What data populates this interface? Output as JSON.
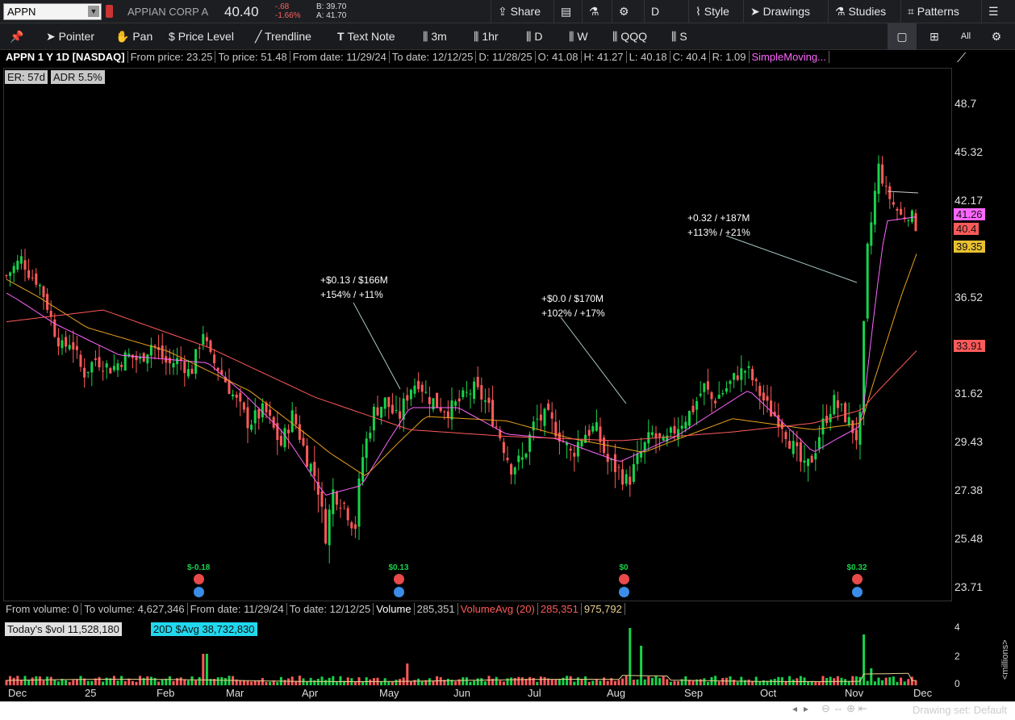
{
  "header": {
    "symbol": "APPN",
    "company": "APPIAN CORP A",
    "last": "40.40",
    "change": "-.68",
    "change_pct": "-1.66%",
    "bid": "B: 39.70",
    "ask": "A: 41.70",
    "buttons": [
      "Share",
      "Drawings",
      "Studies",
      "Patterns",
      "Style",
      "D"
    ],
    "share_label": "Share",
    "style_label": "Style",
    "drawings_label": "Drawings",
    "studies_label": "Studies",
    "patterns_label": "Patterns",
    "aggregation": "D"
  },
  "toolbar": {
    "pointer": "Pointer",
    "pan": "Pan",
    "price_level": "Price Level",
    "trendline": "Trendline",
    "text_note": "Text Note",
    "t3m": "3m",
    "t1hr": "1hr",
    "tD": "D",
    "tW": "W",
    "qqq": "QQQ",
    "s": "S",
    "all": "All"
  },
  "infobar": {
    "title": "APPN 1 Y 1D [NASDAQ]",
    "from_price": "From price: 23.25",
    "to_price": "To price: 51.48",
    "from_date": "From date: 11/29/24",
    "to_date": "To date: 12/12/25",
    "d": "D: 11/28/25",
    "o": "O: 41.08",
    "h": "H: 41.27",
    "l": "L: 40.18",
    "c": "C: 40.4",
    "r": "R: 1.09",
    "study": "SimpleMoving..."
  },
  "badges": {
    "er": "ER: 57d",
    "adr": "ADR 5.5%"
  },
  "price_axis": [
    "48.7",
    "45.32",
    "42.17",
    "36.52",
    "31.62",
    "29.43",
    "27.38",
    "25.48",
    "23.71"
  ],
  "price_tags": [
    {
      "label": "41.26",
      "bg": "#ff66ff"
    },
    {
      "label": "40.4",
      "bg": "#ff5a5a"
    },
    {
      "label": "39.35",
      "bg": "#e8c030"
    },
    {
      "label": "33.91",
      "bg": "#ff5a5a"
    }
  ],
  "annotations": [
    {
      "line1": "+$0.13 / $166M",
      "line2": "+154% / +11%"
    },
    {
      "line1": "+$0.0 / $170M",
      "line2": "+102% / +17%"
    },
    {
      "line1": "+0.32 / +187M",
      "line2": "+113% / +21%"
    }
  ],
  "earnings": [
    "$-0.18",
    "$0.13",
    "$0",
    "$0.32"
  ],
  "volume_info": {
    "from_volume": "From volume: 0",
    "to_volume": "To volume: 4,627,346",
    "from_date": "From date: 11/29/24",
    "to_date": "To date: 12/12/25",
    "label": "Volume",
    "value": "285,351",
    "avg_label": "VolumeAvg (20)",
    "avg_value": "285,351",
    "avg2": "975,792"
  },
  "dollar_volume": {
    "today": "Today's $vol 11,528,180",
    "avg": "20D $Avg 38,732,830"
  },
  "volume_axis": [
    "4",
    "2",
    "0"
  ],
  "volume_unit": "<millions>",
  "months": [
    "Dec",
    "25",
    "Feb",
    "Mar",
    "Apr",
    "May",
    "Jun",
    "Jul",
    "Aug",
    "Sep",
    "Oct",
    "Nov",
    "Dec"
  ],
  "drawing_set": "Drawing set: Default",
  "colors": {
    "up": "#17d34a",
    "down": "#ff5a5a",
    "sma_short": "#ff66ff",
    "sma_mid": "#e8a020",
    "sma_long": "#ff5a5a",
    "background": "#000000"
  },
  "chart_data": {
    "type": "candlestick",
    "title": "APPN 1 Y 1D [NASDAQ]",
    "series": [
      {
        "name": "APPN close (approx.)",
        "values": [
          [
            0,
            37.8
          ],
          [
            20,
            38.9
          ],
          [
            25,
            38.1
          ],
          [
            40,
            37.4
          ],
          [
            50,
            36.2
          ],
          [
            60,
            34.8
          ],
          [
            70,
            33.9
          ],
          [
            80,
            34.4
          ],
          [
            95,
            32.6
          ],
          [
            110,
            33.4
          ],
          [
            130,
            32.9
          ],
          [
            150,
            33.6
          ],
          [
            165,
            33.3
          ],
          [
            180,
            34.2
          ],
          [
            200,
            33.1
          ],
          [
            215,
            33.4
          ],
          [
            228,
            32.6
          ],
          [
            245,
            35.0
          ],
          [
            250,
            33.6
          ],
          [
            265,
            32.8
          ],
          [
            280,
            31.6
          ],
          [
            300,
            30.3
          ],
          [
            320,
            30.9
          ],
          [
            340,
            29.3
          ],
          [
            355,
            30.7
          ],
          [
            370,
            29.0
          ],
          [
            385,
            27.8
          ],
          [
            395,
            25.6
          ],
          [
            405,
            27.4
          ],
          [
            420,
            26.8
          ],
          [
            432,
            25.9
          ],
          [
            440,
            28.6
          ],
          [
            455,
            30.8
          ],
          [
            470,
            31.3
          ],
          [
            485,
            30.4
          ],
          [
            500,
            31.9
          ],
          [
            510,
            32.3
          ],
          [
            520,
            31.6
          ],
          [
            535,
            31.1
          ],
          [
            550,
            30.9
          ],
          [
            565,
            31.4
          ],
          [
            580,
            31.9
          ],
          [
            595,
            31.2
          ],
          [
            610,
            29.9
          ],
          [
            625,
            28.4
          ],
          [
            640,
            28.7
          ],
          [
            655,
            30.4
          ],
          [
            670,
            30.6
          ],
          [
            685,
            29.8
          ],
          [
            700,
            28.9
          ],
          [
            715,
            29.8
          ],
          [
            730,
            30.1
          ],
          [
            745,
            28.6
          ],
          [
            760,
            28.2
          ],
          [
            770,
            27.7
          ],
          [
            785,
            28.9
          ],
          [
            800,
            29.8
          ],
          [
            815,
            29.3
          ],
          [
            830,
            30.1
          ],
          [
            850,
            30.9
          ],
          [
            865,
            32.0
          ],
          [
            875,
            31.3
          ],
          [
            890,
            31.8
          ],
          [
            905,
            32.6
          ],
          [
            918,
            32.9
          ],
          [
            930,
            31.9
          ],
          [
            945,
            30.9
          ],
          [
            960,
            30.4
          ],
          [
            975,
            29.2
          ],
          [
            990,
            28.2
          ],
          [
            1000,
            28.9
          ],
          [
            1010,
            30.1
          ],
          [
            1025,
            31.3
          ],
          [
            1040,
            30.6
          ],
          [
            1055,
            29.6
          ],
          [
            1060,
            31.0
          ],
          [
            1065,
            38.6
          ],
          [
            1075,
            42.0
          ],
          [
            1080,
            44.6
          ],
          [
            1090,
            42.8
          ],
          [
            1100,
            41.9
          ],
          [
            1110,
            41.2
          ],
          [
            1120,
            41.5
          ],
          [
            1130,
            40.4
          ]
        ]
      },
      {
        "name": "SMA short (approx.)",
        "values": [
          [
            0,
            36.8
          ],
          [
            60,
            35.2
          ],
          [
            140,
            33.6
          ],
          [
            250,
            33.2
          ],
          [
            340,
            30.0
          ],
          [
            395,
            27.2
          ],
          [
            440,
            27.6
          ],
          [
            500,
            31.0
          ],
          [
            560,
            31.0
          ],
          [
            620,
            29.8
          ],
          [
            680,
            29.6
          ],
          [
            760,
            28.6
          ],
          [
            830,
            29.7
          ],
          [
            920,
            31.8
          ],
          [
            1000,
            29.0
          ],
          [
            1060,
            30.2
          ],
          [
            1090,
            41.0
          ],
          [
            1130,
            41.26
          ]
        ]
      },
      {
        "name": "SMA mid (approx.)",
        "values": [
          [
            0,
            37.6
          ],
          [
            100,
            35.0
          ],
          [
            200,
            33.8
          ],
          [
            300,
            31.8
          ],
          [
            400,
            29.0
          ],
          [
            445,
            28.0
          ],
          [
            520,
            30.6
          ],
          [
            620,
            30.4
          ],
          [
            700,
            29.6
          ],
          [
            790,
            29.0
          ],
          [
            900,
            30.5
          ],
          [
            1000,
            30.0
          ],
          [
            1060,
            30.3
          ],
          [
            1130,
            39.35
          ]
        ]
      },
      {
        "name": "SMA long (approx.)",
        "values": [
          [
            0,
            35.3
          ],
          [
            120,
            35.9
          ],
          [
            250,
            34.0
          ],
          [
            380,
            31.5
          ],
          [
            500,
            30.0
          ],
          [
            620,
            29.7
          ],
          [
            760,
            29.5
          ],
          [
            900,
            29.9
          ],
          [
            1000,
            30.3
          ],
          [
            1060,
            30.9
          ],
          [
            1130,
            33.91
          ]
        ]
      }
    ],
    "y_ticks": [
      "48.7",
      "45.32",
      "42.17",
      "36.52",
      "31.62",
      "29.43",
      "27.38",
      "25.48",
      "23.71"
    ],
    "x_ticks": [
      "Dec",
      "25",
      "Feb",
      "Mar",
      "Apr",
      "May",
      "Jun",
      "Jul",
      "Aug",
      "Sep",
      "Oct",
      "Nov",
      "Dec"
    ],
    "ylim": [
      23.25,
      51.48
    ]
  }
}
